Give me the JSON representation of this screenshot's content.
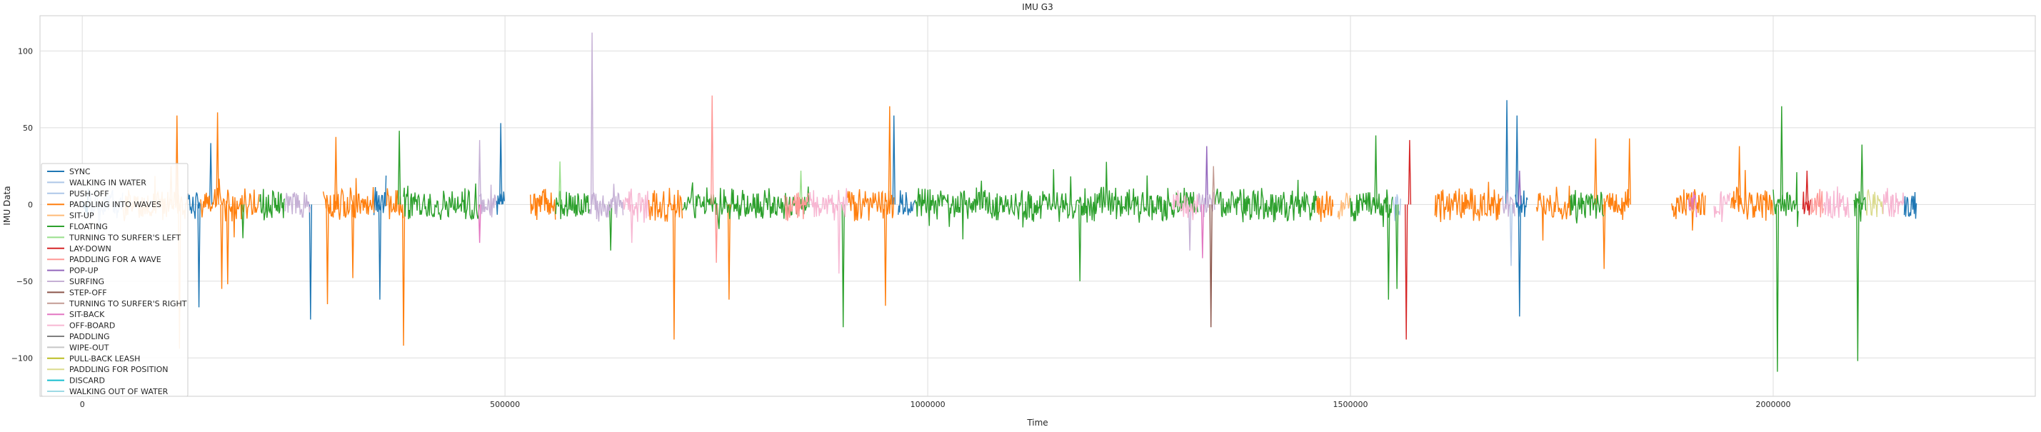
{
  "chart_data": {
    "type": "line",
    "title": "IMU G3",
    "xlabel": "Time",
    "ylabel": "IMU Data",
    "xlim": [
      -50000,
      2310000
    ],
    "ylim": [
      -125,
      123
    ],
    "xticks": [
      0,
      500000,
      1000000,
      1500000,
      2000000
    ],
    "xtick_labels": [
      "0",
      "500000",
      "1000000",
      "1500000",
      "2000000"
    ],
    "yticks": [
      -100,
      -50,
      0,
      50,
      100
    ],
    "ytick_labels": [
      "−100",
      "−50",
      "0",
      "50",
      "100"
    ],
    "grid": true,
    "legend_position": "lower-left",
    "series": [
      {
        "name": "SYNC",
        "color": "#1f77b4",
        "segments": [
          [
            0,
            8000
          ],
          [
            125000,
            140000
          ],
          [
            345000,
            360000
          ],
          [
            490000,
            500000
          ],
          [
            965000,
            985000
          ],
          [
            1695000,
            1710000
          ],
          [
            2155000,
            2170000
          ]
        ],
        "spikes": [
          {
            "x": 152000,
            "y": 40
          },
          {
            "x": 138000,
            "y": -67
          },
          {
            "x": 270000,
            "y": -75
          },
          {
            "x": 352000,
            "y": -62
          },
          {
            "x": 495000,
            "y": 53
          },
          {
            "x": 960000,
            "y": 58
          },
          {
            "x": 1685000,
            "y": 68
          },
          {
            "x": 1700000,
            "y": -73
          },
          {
            "x": 1697000,
            "y": 58
          }
        ]
      },
      {
        "name": "WALKING IN WATER",
        "color": "#aec7e8",
        "segments": [
          [
            8000,
            30000
          ],
          [
            1550000,
            1560000
          ]
        ],
        "spikes": [
          {
            "x": 20000,
            "y": -22
          }
        ]
      },
      {
        "name": "PUSH-OFF",
        "color": "#aec7e8",
        "segments": [
          [
            30000,
            48000
          ]
        ],
        "spikes": [
          {
            "x": 1690000,
            "y": -40
          }
        ]
      },
      {
        "name": "PADDLING INTO WAVES",
        "color": "#ff7f0e",
        "segments": [
          [
            140000,
            210000
          ],
          [
            285000,
            345000
          ],
          [
            360000,
            380000
          ],
          [
            530000,
            560000
          ],
          [
            670000,
            710000
          ],
          [
            905000,
            960000
          ],
          [
            1460000,
            1480000
          ],
          [
            1600000,
            1680000
          ],
          [
            1720000,
            1760000
          ],
          [
            1800000,
            1830000
          ],
          [
            1880000,
            1920000
          ],
          [
            1950000,
            2000000
          ]
        ],
        "spikes": [
          {
            "x": 112000,
            "y": 58
          },
          {
            "x": 160000,
            "y": 60
          },
          {
            "x": 165000,
            "y": -55
          },
          {
            "x": 172000,
            "y": -52
          },
          {
            "x": 290000,
            "y": -65
          },
          {
            "x": 300000,
            "y": 44
          },
          {
            "x": 320000,
            "y": -48
          },
          {
            "x": 380000,
            "y": -92
          },
          {
            "x": 700000,
            "y": -88
          },
          {
            "x": 765000,
            "y": -62
          },
          {
            "x": 955000,
            "y": 64
          },
          {
            "x": 950000,
            "y": -66
          },
          {
            "x": 1790000,
            "y": 43
          },
          {
            "x": 1800000,
            "y": -42
          },
          {
            "x": 1830000,
            "y": 43
          },
          {
            "x": 1960000,
            "y": 38
          }
        ]
      },
      {
        "name": "SIT-UP",
        "color": "#ffbb78",
        "segments": [
          [
            48000,
            125000
          ],
          [
            1485000,
            1500000
          ]
        ],
        "spikes": [
          {
            "x": 105000,
            "y": 25
          },
          {
            "x": 115000,
            "y": -94
          }
        ]
      },
      {
        "name": "FLOATING",
        "color": "#2ca02c",
        "segments": [
          [
            210000,
            240000
          ],
          [
            380000,
            470000
          ],
          [
            560000,
            600000
          ],
          [
            710000,
            860000
          ],
          [
            985000,
            1320000
          ],
          [
            1340000,
            1460000
          ],
          [
            1500000,
            1550000
          ],
          [
            1760000,
            1800000
          ],
          [
            2000000,
            2030000
          ],
          [
            2095000,
            2110000
          ]
        ],
        "spikes": [
          {
            "x": 190000,
            "y": -22
          },
          {
            "x": 375000,
            "y": 48
          },
          {
            "x": 625000,
            "y": -30
          },
          {
            "x": 900000,
            "y": -80
          },
          {
            "x": 1180000,
            "y": -50
          },
          {
            "x": 1530000,
            "y": 45
          },
          {
            "x": 1545000,
            "y": -62
          },
          {
            "x": 1555000,
            "y": -55
          },
          {
            "x": 2005000,
            "y": -109
          },
          {
            "x": 2010000,
            "y": 64
          },
          {
            "x": 2105000,
            "y": 39
          },
          {
            "x": 2100000,
            "y": -102
          }
        ]
      },
      {
        "name": "TURNING TO SURFER'S LEFT",
        "color": "#98df8a",
        "segments": [],
        "spikes": [
          {
            "x": 565000,
            "y": 28
          },
          {
            "x": 850000,
            "y": 22
          }
        ]
      },
      {
        "name": "LAY-DOWN",
        "color": "#d62728",
        "segments": [
          [
            2035000,
            2045000
          ]
        ],
        "spikes": [
          {
            "x": 1570000,
            "y": 42
          },
          {
            "x": 1566000,
            "y": -88
          },
          {
            "x": 2040000,
            "y": 22
          }
        ]
      },
      {
        "name": "PADDLING FOR A WAVE",
        "color": "#ff9896",
        "segments": [
          [
            830000,
            860000
          ],
          [
            2045000,
            2060000
          ]
        ],
        "spikes": [
          {
            "x": 745000,
            "y": 71
          },
          {
            "x": 750000,
            "y": -38
          }
        ]
      },
      {
        "name": "POP-UP",
        "color": "#9467bd",
        "segments": [],
        "spikes": [
          {
            "x": 1330000,
            "y": 38
          },
          {
            "x": 1700000,
            "y": 22
          }
        ]
      },
      {
        "name": "SURFING",
        "color": "#c5b0d5",
        "segments": [
          [
            240000,
            270000
          ],
          [
            470000,
            490000
          ],
          [
            600000,
            640000
          ],
          [
            1320000,
            1340000
          ],
          [
            1680000,
            1695000
          ]
        ],
        "spikes": [
          {
            "x": 603000,
            "y": 112
          },
          {
            "x": 470000,
            "y": 42
          },
          {
            "x": 1310000,
            "y": -30
          }
        ]
      },
      {
        "name": "STEP-OFF",
        "color": "#8c564b",
        "segments": [],
        "spikes": [
          {
            "x": 1335000,
            "y": -80
          }
        ]
      },
      {
        "name": "TURNING TO SURFER'S RIGHT",
        "color": "#c49c94",
        "segments": [],
        "spikes": [
          {
            "x": 1338000,
            "y": 25
          }
        ]
      },
      {
        "name": "SIT-BACK",
        "color": "#e377c2",
        "segments": [
          [
            1900000,
            1910000
          ]
        ],
        "spikes": [
          {
            "x": 1325000,
            "y": -35
          },
          {
            "x": 470000,
            "y": -25
          }
        ]
      },
      {
        "name": "OFF-BOARD",
        "color": "#f7b6d2",
        "segments": [
          [
            640000,
            670000
          ],
          [
            860000,
            905000
          ],
          [
            1290000,
            1320000
          ],
          [
            1930000,
            1950000
          ],
          [
            2060000,
            2090000
          ],
          [
            2130000,
            2155000
          ]
        ],
        "spikes": [
          {
            "x": 895000,
            "y": -45
          },
          {
            "x": 650000,
            "y": -25
          }
        ]
      },
      {
        "name": "PADDLING",
        "color": "#7f7f7f",
        "segments": [],
        "spikes": []
      },
      {
        "name": "WIPE-OUT",
        "color": "#c7c7c7",
        "segments": [],
        "spikes": []
      },
      {
        "name": "PULL-BACK LEASH",
        "color": "#bcbd22",
        "segments": [],
        "spikes": []
      },
      {
        "name": "PADDLING FOR POSITION",
        "color": "#dbdb8d",
        "segments": [
          [
            2110000,
            2130000
          ]
        ],
        "spikes": []
      },
      {
        "name": "DISCARD",
        "color": "#17becf",
        "segments": [],
        "spikes": []
      },
      {
        "name": "WALKING OUT OF WATER",
        "color": "#9edae5",
        "segments": [],
        "spikes": []
      }
    ]
  }
}
